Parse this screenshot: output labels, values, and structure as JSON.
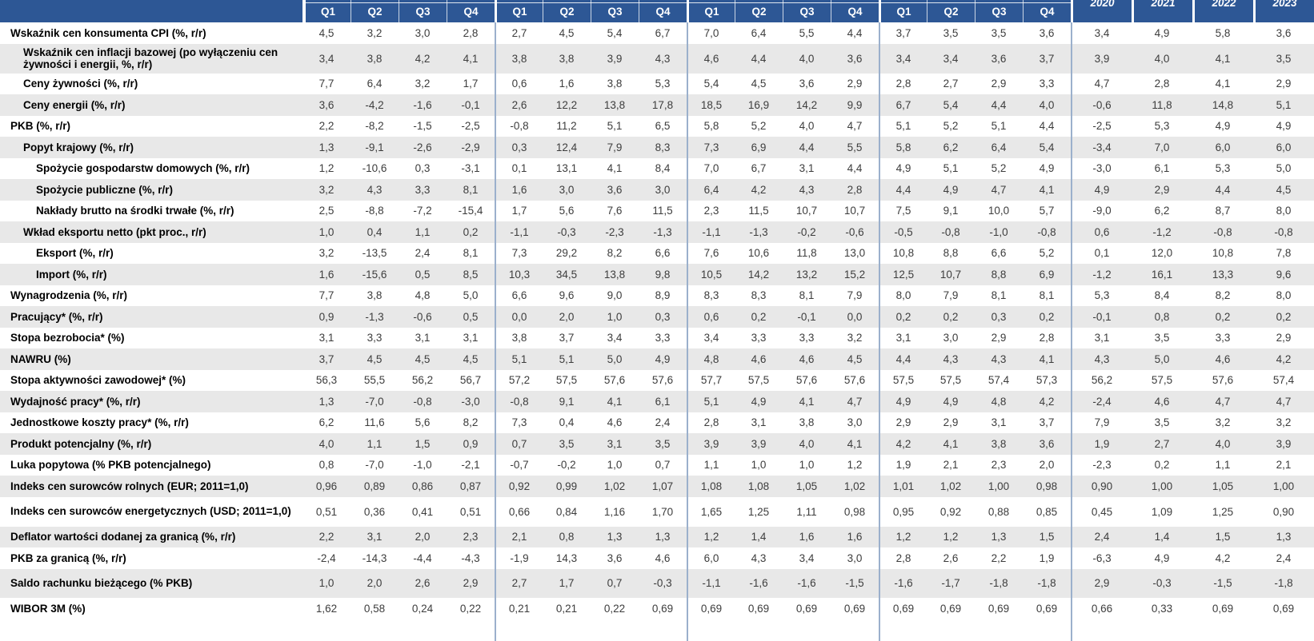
{
  "table": {
    "header": {
      "quarter_groups": [
        {
          "quarters": [
            "Q1",
            "Q2",
            "Q3",
            "Q4"
          ]
        },
        {
          "quarters": [
            "Q1",
            "Q2",
            "Q3",
            "Q4"
          ]
        },
        {
          "quarters": [
            "Q1",
            "Q2",
            "Q3",
            "Q4"
          ]
        },
        {
          "quarters": [
            "Q1",
            "Q2",
            "Q3",
            "Q4"
          ]
        }
      ],
      "year_columns": [
        "2020",
        "2021",
        "2022",
        "2023"
      ]
    },
    "rows": [
      {
        "label": "Wskaźnik cen konsumenta CPI (%, r/r)",
        "indent": 0,
        "row_type": "normal",
        "quarters": [
          "4,5",
          "3,2",
          "3,0",
          "2,8",
          "2,7",
          "4,5",
          "5,4",
          "6,7",
          "7,0",
          "6,4",
          "5,5",
          "4,4",
          "3,7",
          "3,5",
          "3,5",
          "3,6"
        ],
        "years": [
          "3,4",
          "4,9",
          "5,8",
          "3,6"
        ]
      },
      {
        "label": "Wskaźnik cen inflacji bazowej (po wyłączeniu cen żywności i energii, %, r/r)",
        "indent": 1,
        "row_type": "two_line",
        "quarters": [
          "3,4",
          "3,8",
          "4,2",
          "4,1",
          "3,8",
          "3,8",
          "3,9",
          "4,3",
          "4,6",
          "4,4",
          "4,0",
          "3,6",
          "3,4",
          "3,4",
          "3,6",
          "3,7"
        ],
        "years": [
          "3,9",
          "4,0",
          "4,1",
          "3,5"
        ]
      },
      {
        "label": "Ceny żywności (%, r/r)",
        "indent": 1,
        "row_type": "normal",
        "quarters": [
          "7,7",
          "6,4",
          "3,2",
          "1,7",
          "0,6",
          "1,6",
          "3,8",
          "5,3",
          "5,4",
          "4,5",
          "3,6",
          "2,9",
          "2,8",
          "2,7",
          "2,9",
          "3,3"
        ],
        "years": [
          "4,7",
          "2,8",
          "4,1",
          "2,9"
        ]
      },
      {
        "label": "Ceny energii (%, r/r)",
        "indent": 1,
        "row_type": "normal",
        "quarters": [
          "3,6",
          "-4,2",
          "-1,6",
          "-0,1",
          "2,6",
          "12,2",
          "13,8",
          "17,8",
          "18,5",
          "16,9",
          "14,2",
          "9,9",
          "6,7",
          "5,4",
          "4,4",
          "4,0"
        ],
        "years": [
          "-0,6",
          "11,8",
          "14,8",
          "5,1"
        ]
      },
      {
        "label": "PKB (%, r/r)",
        "indent": 0,
        "row_type": "normal",
        "quarters": [
          "2,2",
          "-8,2",
          "-1,5",
          "-2,5",
          "-0,8",
          "11,2",
          "5,1",
          "6,5",
          "5,8",
          "5,2",
          "4,0",
          "4,7",
          "5,1",
          "5,2",
          "5,1",
          "4,4"
        ],
        "years": [
          "-2,5",
          "5,3",
          "4,9",
          "4,9"
        ]
      },
      {
        "label": "Popyt krajowy (%, r/r)",
        "indent": 1,
        "row_type": "normal",
        "quarters": [
          "1,3",
          "-9,1",
          "-2,6",
          "-2,9",
          "0,3",
          "12,4",
          "7,9",
          "8,3",
          "7,3",
          "6,9",
          "4,4",
          "5,5",
          "5,8",
          "6,2",
          "6,4",
          "5,4"
        ],
        "years": [
          "-3,4",
          "7,0",
          "6,0",
          "6,0"
        ]
      },
      {
        "label": "Spożycie gospodarstw domowych (%, r/r)",
        "indent": 2,
        "row_type": "normal",
        "quarters": [
          "1,2",
          "-10,6",
          "0,3",
          "-3,1",
          "0,1",
          "13,1",
          "4,1",
          "8,4",
          "7,0",
          "6,7",
          "3,1",
          "4,4",
          "4,9",
          "5,1",
          "5,2",
          "4,9"
        ],
        "years": [
          "-3,0",
          "6,1",
          "5,3",
          "5,0"
        ]
      },
      {
        "label": "Spożycie publiczne (%, r/r)",
        "indent": 2,
        "row_type": "normal",
        "quarters": [
          "3,2",
          "4,3",
          "3,3",
          "8,1",
          "1,6",
          "3,0",
          "3,6",
          "3,0",
          "6,4",
          "4,2",
          "4,3",
          "2,8",
          "4,4",
          "4,9",
          "4,7",
          "4,1"
        ],
        "years": [
          "4,9",
          "2,9",
          "4,4",
          "4,5"
        ]
      },
      {
        "label": "Nakłady brutto na środki trwałe (%, r/r)",
        "indent": 2,
        "row_type": "normal",
        "quarters": [
          "2,5",
          "-8,8",
          "-7,2",
          "-15,4",
          "1,7",
          "5,6",
          "7,6",
          "11,5",
          "2,3",
          "11,5",
          "10,7",
          "10,7",
          "7,5",
          "9,1",
          "10,0",
          "5,7"
        ],
        "years": [
          "-9,0",
          "6,2",
          "8,7",
          "8,0"
        ]
      },
      {
        "label": "Wkład eksportu netto (pkt proc., r/r)",
        "indent": 1,
        "row_type": "normal",
        "quarters": [
          "1,0",
          "0,4",
          "1,1",
          "0,2",
          "-1,1",
          "-0,3",
          "-2,3",
          "-1,3",
          "-1,1",
          "-1,3",
          "-0,2",
          "-0,6",
          "-0,5",
          "-0,8",
          "-1,0",
          "-0,8"
        ],
        "years": [
          "0,6",
          "-1,2",
          "-0,8",
          "-0,8"
        ]
      },
      {
        "label": "Eksport (%, r/r)",
        "indent": 2,
        "row_type": "normal",
        "quarters": [
          "3,2",
          "-13,5",
          "2,4",
          "8,1",
          "7,3",
          "29,2",
          "8,2",
          "6,6",
          "7,6",
          "10,6",
          "11,8",
          "13,0",
          "10,8",
          "8,8",
          "6,6",
          "5,2"
        ],
        "years": [
          "0,1",
          "12,0",
          "10,8",
          "7,8"
        ]
      },
      {
        "label": "Import (%, r/r)",
        "indent": 2,
        "row_type": "normal",
        "quarters": [
          "1,6",
          "-15,6",
          "0,5",
          "8,5",
          "10,3",
          "34,5",
          "13,8",
          "9,8",
          "10,5",
          "14,2",
          "13,2",
          "15,2",
          "12,5",
          "10,7",
          "8,8",
          "6,9"
        ],
        "years": [
          "-1,2",
          "16,1",
          "13,3",
          "9,6"
        ]
      },
      {
        "label": "Wynagrodzenia (%, r/r)",
        "indent": 0,
        "row_type": "normal",
        "quarters": [
          "7,7",
          "3,8",
          "4,8",
          "5,0",
          "6,6",
          "9,6",
          "9,0",
          "8,9",
          "8,3",
          "8,3",
          "8,1",
          "7,9",
          "8,0",
          "7,9",
          "8,1",
          "8,1"
        ],
        "years": [
          "5,3",
          "8,4",
          "8,2",
          "8,0"
        ]
      },
      {
        "label": "Pracujący* (%, r/r)",
        "indent": 0,
        "row_type": "normal",
        "quarters": [
          "0,9",
          "-1,3",
          "-0,6",
          "0,5",
          "0,0",
          "2,0",
          "1,0",
          "0,3",
          "0,6",
          "0,2",
          "-0,1",
          "0,0",
          "0,2",
          "0,2",
          "0,3",
          "0,2"
        ],
        "years": [
          "-0,1",
          "0,8",
          "0,2",
          "0,2"
        ]
      },
      {
        "label": "Stopa bezrobocia* (%)",
        "indent": 0,
        "row_type": "normal",
        "quarters": [
          "3,1",
          "3,3",
          "3,1",
          "3,1",
          "3,8",
          "3,7",
          "3,4",
          "3,3",
          "3,4",
          "3,3",
          "3,3",
          "3,2",
          "3,1",
          "3,0",
          "2,9",
          "2,8"
        ],
        "years": [
          "3,1",
          "3,5",
          "3,3",
          "2,9"
        ]
      },
      {
        "label": "NAWRU (%)",
        "indent": 0,
        "row_type": "normal",
        "quarters": [
          "3,7",
          "4,5",
          "4,5",
          "4,5",
          "5,1",
          "5,1",
          "5,0",
          "4,9",
          "4,8",
          "4,6",
          "4,6",
          "4,5",
          "4,4",
          "4,3",
          "4,3",
          "4,1"
        ],
        "years": [
          "4,3",
          "5,0",
          "4,6",
          "4,2"
        ]
      },
      {
        "label": "Stopa aktywności zawodowej* (%)",
        "indent": 0,
        "row_type": "normal",
        "quarters": [
          "56,3",
          "55,5",
          "56,2",
          "56,7",
          "57,2",
          "57,5",
          "57,6",
          "57,6",
          "57,7",
          "57,5",
          "57,6",
          "57,6",
          "57,5",
          "57,5",
          "57,4",
          "57,3"
        ],
        "years": [
          "56,2",
          "57,5",
          "57,6",
          "57,4"
        ]
      },
      {
        "label": "Wydajność pracy* (%, r/r)",
        "indent": 0,
        "row_type": "normal",
        "quarters": [
          "1,3",
          "-7,0",
          "-0,8",
          "-3,0",
          "-0,8",
          "9,1",
          "4,1",
          "6,1",
          "5,1",
          "4,9",
          "4,1",
          "4,7",
          "4,9",
          "4,9",
          "4,8",
          "4,2"
        ],
        "years": [
          "-2,4",
          "4,6",
          "4,7",
          "4,7"
        ]
      },
      {
        "label": "Jednostkowe koszty pracy* (%, r/r)",
        "indent": 0,
        "row_type": "normal",
        "quarters": [
          "6,2",
          "11,6",
          "5,6",
          "8,2",
          "7,3",
          "0,4",
          "4,6",
          "2,4",
          "2,8",
          "3,1",
          "3,8",
          "3,0",
          "2,9",
          "2,9",
          "3,1",
          "3,7"
        ],
        "years": [
          "7,9",
          "3,5",
          "3,2",
          "3,2"
        ]
      },
      {
        "label": "Produkt potencjalny (%, r/r)",
        "indent": 0,
        "row_type": "normal",
        "quarters": [
          "4,0",
          "1,1",
          "1,5",
          "0,9",
          "0,7",
          "3,5",
          "3,1",
          "3,5",
          "3,9",
          "3,9",
          "4,0",
          "4,1",
          "4,2",
          "4,1",
          "3,8",
          "3,6"
        ],
        "years": [
          "1,9",
          "2,7",
          "4,0",
          "3,9"
        ]
      },
      {
        "label": "Luka popytowa (% PKB potencjalnego)",
        "indent": 0,
        "row_type": "normal",
        "quarters": [
          "0,8",
          "-7,0",
          "-1,0",
          "-2,1",
          "-0,7",
          "-0,2",
          "1,0",
          "0,7",
          "1,1",
          "1,0",
          "1,0",
          "1,2",
          "1,9",
          "2,1",
          "2,3",
          "2,0"
        ],
        "years": [
          "-2,3",
          "0,2",
          "1,1",
          "2,1"
        ]
      },
      {
        "label": "Indeks cen surowców rolnych (EUR; 2011=1,0)",
        "indent": 0,
        "row_type": "normal",
        "quarters": [
          "0,96",
          "0,89",
          "0,86",
          "0,87",
          "0,92",
          "0,99",
          "1,02",
          "1,07",
          "1,08",
          "1,08",
          "1,05",
          "1,02",
          "1,01",
          "1,02",
          "1,00",
          "0,98"
        ],
        "years": [
          "0,90",
          "1,00",
          "1,05",
          "1,00"
        ]
      },
      {
        "label": "Indeks cen surowców energetycznych (USD; 2011=1,0)",
        "indent": 0,
        "row_type": "two_line",
        "quarters": [
          "0,51",
          "0,36",
          "0,41",
          "0,51",
          "0,66",
          "0,84",
          "1,16",
          "1,70",
          "1,65",
          "1,25",
          "1,11",
          "0,98",
          "0,95",
          "0,92",
          "0,88",
          "0,85"
        ],
        "years": [
          "0,45",
          "1,09",
          "1,25",
          "0,90"
        ]
      },
      {
        "label": "Deflator wartości dodanej za granicą (%, r/r)",
        "indent": 0,
        "row_type": "normal",
        "quarters": [
          "2,2",
          "3,1",
          "2,0",
          "2,3",
          "2,1",
          "0,8",
          "1,3",
          "1,3",
          "1,2",
          "1,4",
          "1,6",
          "1,6",
          "1,2",
          "1,2",
          "1,3",
          "1,5"
        ],
        "years": [
          "2,4",
          "1,4",
          "1,5",
          "1,3"
        ]
      },
      {
        "label": "PKB za granicą (%, r/r)",
        "indent": 0,
        "row_type": "normal",
        "quarters": [
          "-2,4",
          "-14,3",
          "-4,4",
          "-4,3",
          "-1,9",
          "14,3",
          "3,6",
          "4,6",
          "6,0",
          "4,3",
          "3,4",
          "3,0",
          "2,8",
          "2,6",
          "2,2",
          "1,9"
        ],
        "years": [
          "-6,3",
          "4,9",
          "4,2",
          "2,4"
        ]
      },
      {
        "label": "Saldo rachunku bieżącego (% PKB)",
        "indent": 0,
        "row_type": "spacious",
        "quarters": [
          "1,0",
          "2,0",
          "2,6",
          "2,9",
          "2,7",
          "1,7",
          "0,7",
          "-0,3",
          "-1,1",
          "-1,6",
          "-1,6",
          "-1,5",
          "-1,6",
          "-1,7",
          "-1,8",
          "-1,8"
        ],
        "years": [
          "2,9",
          "-0,3",
          "-1,5",
          "-1,8"
        ]
      },
      {
        "label": "WIBOR 3M (%)",
        "indent": 0,
        "row_type": "bottom",
        "quarters": [
          "1,62",
          "0,58",
          "0,24",
          "0,22",
          "0,21",
          "0,21",
          "0,22",
          "0,69",
          "0,69",
          "0,69",
          "0,69",
          "0,69",
          "0,69",
          "0,69",
          "0,69",
          "0,69"
        ],
        "years": [
          "0,66",
          "0,33",
          "0,69",
          "0,69"
        ]
      }
    ]
  },
  "colors": {
    "header_bg": "#2d5795",
    "header_text": "#ffffff",
    "stripe": "#e8e8e8",
    "row_bg": "#ffffff",
    "divider": "#9bb0cc",
    "value_text": "#3d3d3d",
    "label_text": "#000000"
  }
}
